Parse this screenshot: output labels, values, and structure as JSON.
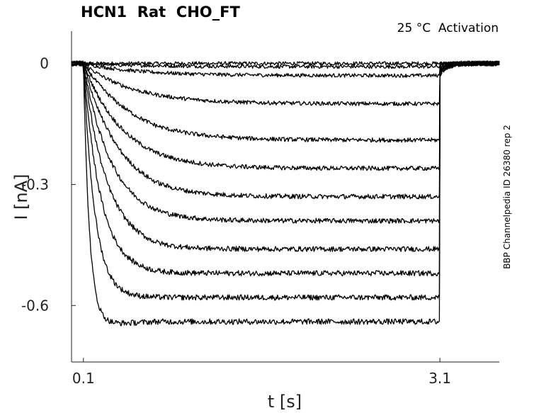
{
  "title": "HCN1  Rat  CHO_FT",
  "annotation": "25 °C  Activation",
  "side_label": "BBP Channelpedia ID 26380 rep 2",
  "chart_data": {
    "type": "line",
    "xlabel": "t [s]",
    "ylabel": "I [nA]",
    "xlim": [
      0.0,
      3.6
    ],
    "ylim": [
      -0.74,
      0.08
    ],
    "xticks": [
      0.1,
      3.1
    ],
    "xtick_labels": [
      "0.1",
      "3.1"
    ],
    "yticks": [
      0,
      -0.3,
      -0.6
    ],
    "ytick_labels": [
      "0",
      "-0.3",
      "-0.6"
    ],
    "grid": false,
    "legend": "none",
    "line_color": "#000000",
    "pulse_start": 0.1,
    "pulse_end": 3.1,
    "steady_state_currents": [
      0.0,
      -0.008,
      -0.03,
      -0.1,
      -0.19,
      -0.26,
      -0.33,
      -0.39,
      -0.46,
      -0.52,
      -0.58,
      -0.64
    ],
    "peak_currents": [
      0.0,
      -0.008,
      -0.03,
      -0.1,
      -0.17,
      -0.25,
      -0.31,
      -0.38,
      -0.44,
      -0.51,
      -0.58,
      -0.65
    ]
  }
}
